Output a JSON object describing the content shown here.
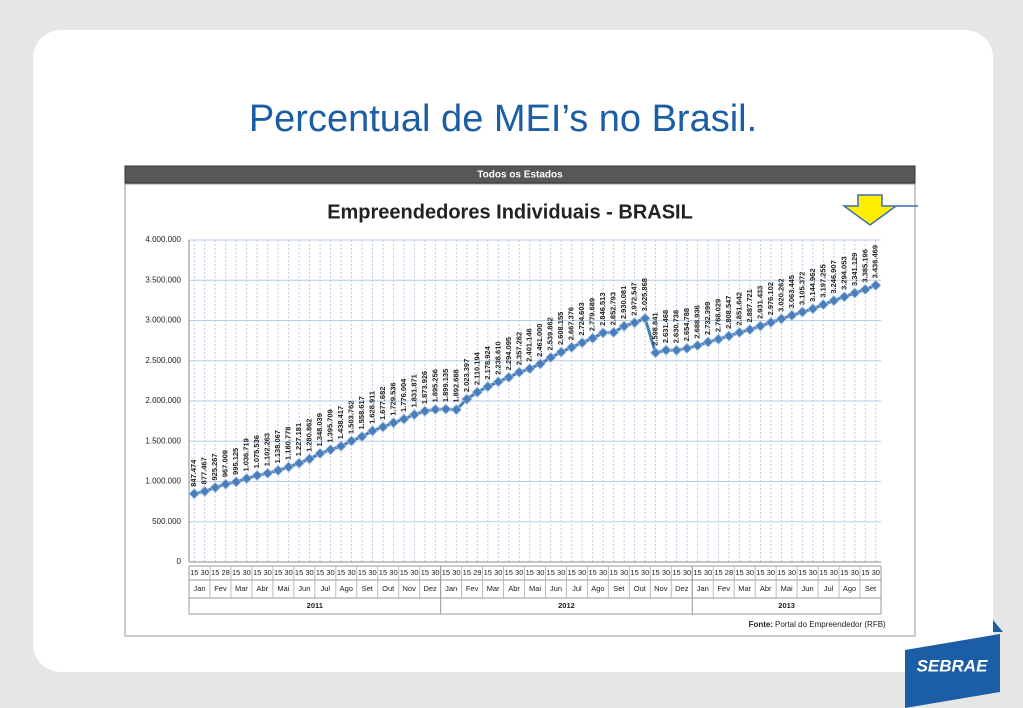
{
  "slide_title": "Percentual de MEI’s no Brasil.",
  "logo": "SEBRAE",
  "chart_data": {
    "type": "line",
    "header": "Todos os Estados",
    "title": "Empreendedores Individuais - BRASIL",
    "source_label": "Fonte:",
    "source": "Portal do Empreendedor (RFB)",
    "color": "#4a7ebb",
    "grid": true,
    "categories": [
      "15",
      "30",
      "15",
      "28",
      "15",
      "30",
      "15",
      "30",
      "15",
      "30",
      "15",
      "30",
      "15",
      "30",
      "15",
      "30",
      "15",
      "30",
      "15",
      "30",
      "15",
      "30",
      "15",
      "30",
      "15",
      "30",
      "15",
      "29",
      "15",
      "30",
      "15",
      "30",
      "15",
      "30",
      "15",
      "30",
      "15",
      "30",
      "15",
      "30",
      "15",
      "30",
      "15",
      "30",
      "15",
      "30",
      "15",
      "30",
      "15",
      "30",
      "15",
      "28",
      "15",
      "30",
      "15",
      "30",
      "15",
      "30",
      "15",
      "30",
      "15",
      "30",
      "15",
      "30",
      "15",
      "30"
    ],
    "groups": [
      {
        "year": "2011",
        "months": [
          "Jan",
          "Fev",
          "Mar",
          "Abr",
          "Mai",
          "Jun",
          "Jul",
          "Ago",
          "Set",
          "Out",
          "Nov",
          "Dez"
        ]
      },
      {
        "year": "2012",
        "months": [
          "Jan",
          "Fev",
          "Mar",
          "Abr",
          "Mai",
          "Jun",
          "Jul",
          "Ago",
          "Set",
          "Out",
          "Nov",
          "Dez"
        ]
      },
      {
        "year": "2013",
        "months": [
          "Jan",
          "Fev",
          "Mar",
          "Abr",
          "Mai",
          "Jun",
          "Jul",
          "Ago",
          "Set"
        ]
      }
    ],
    "values": [
      847474,
      877467,
      925267,
      967009,
      995125,
      1036719,
      1075536,
      1102263,
      1138067,
      1180778,
      1227181,
      1280862,
      1348039,
      1395709,
      1438417,
      1503762,
      1558617,
      1628911,
      1677682,
      1729536,
      1776004,
      1831871,
      1873926,
      1895256,
      1899135,
      1892688,
      2023397,
      2110194,
      2178924,
      2238610,
      2294095,
      2357282,
      2401146,
      2461000,
      2539862,
      2608155,
      2667376,
      2724603,
      2779689,
      2846513,
      2852793,
      2930081,
      2972547,
      3025868,
      2598841,
      2631468,
      2630738,
      2654788,
      2688936,
      2732399,
      2768029,
      2808547,
      2851642,
      2887721,
      2931433,
      2976102,
      3020262,
      3063445,
      3105372,
      3144962,
      3197255,
      3246907,
      3294053,
      3341129,
      3385196,
      3436469
    ],
    "value_labels": [
      "847.474",
      "877.467",
      "925.267",
      "967.009",
      "995.125",
      "1.036.719",
      "1.075.536",
      "1.102.263",
      "1.138.067",
      "1.180.778",
      "1.227.181",
      "1.280.862",
      "1.348.039",
      "1.395.709",
      "1.438.417",
      "1.503.762",
      "1.558.617",
      "1.628.911",
      "1.677.682",
      "1.729.536",
      "1.776.004",
      "1.831.871",
      "1.873.926",
      "1.895.256",
      "1.899.135",
      "1.892.688",
      "2.023.397",
      "2.110.194",
      "2.178.924",
      "2.238.610",
      "2.294.095",
      "2.357.282",
      "2.401.146",
      "2.461.000",
      "2.539.862",
      "2.608.155",
      "2.667.376",
      "2.724.603",
      "2.779.689",
      "2.846.513",
      "2.852.793",
      "2.930.081",
      "2.972.547",
      "3.025.868",
      "2.598.841",
      "2.631.468",
      "2.630.738",
      "2.654.788",
      "2.688.936",
      "2.732.399",
      "2.768.029",
      "2.808.547",
      "2.851.642",
      "2.887.721",
      "2.931.433",
      "2.976.102",
      "3.020.262",
      "3.063.445",
      "3.105.372",
      "3.144.962",
      "3.197.255",
      "3.246.907",
      "3.294.053",
      "3.341.129",
      "3.385.196",
      "3.436.469"
    ],
    "ylim": [
      0,
      4000000
    ],
    "yticks": [
      0,
      {
        "value": 500000,
        "label": "500.000"
      },
      {
        "value": 1000000,
        "label": "1.000.000"
      },
      {
        "value": 1500000,
        "label": "1.500.000"
      },
      {
        "value": 2000000,
        "label": "2.000.000"
      },
      {
        "value": 2500000,
        "label": "2.500.000"
      },
      {
        "value": 3000000,
        "label": "3.000.000"
      },
      {
        "value": 3500000,
        "label": "3.500.000"
      },
      {
        "value": 4000000,
        "label": "4.000.000"
      }
    ]
  }
}
